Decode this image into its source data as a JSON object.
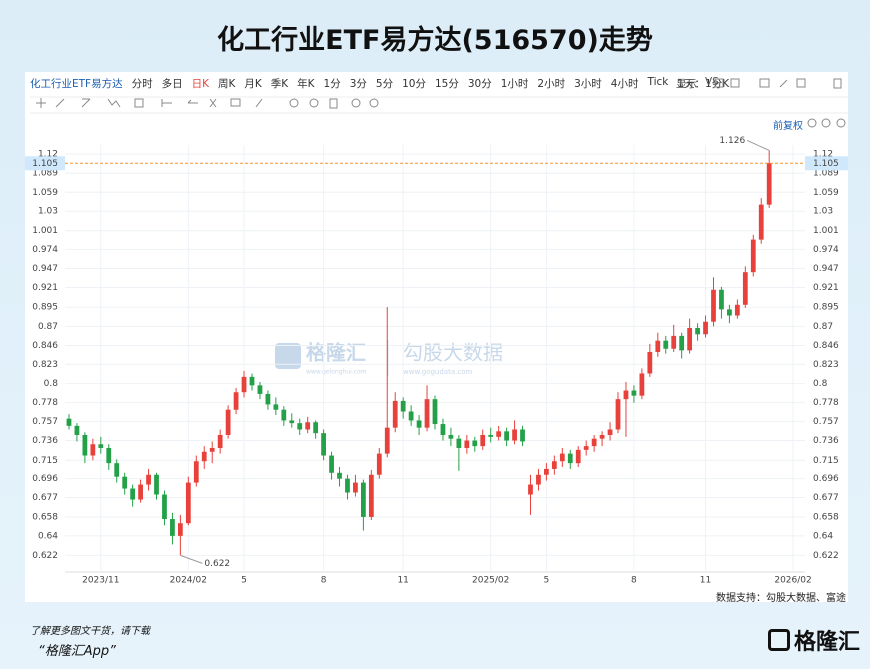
{
  "title": "化工行业ETF易方达(516570)走势",
  "toolbar": {
    "items": [
      "化工行业ETF易方达",
      "分时",
      "多日",
      "日K",
      "周K",
      "月K",
      "季K",
      "年K",
      "1分",
      "3分",
      "5分",
      "10分",
      "15分",
      "30分",
      "1小时",
      "2小时",
      "3小时",
      "4小时",
      "Tick",
      "1天：1分K"
    ],
    "right": [
      "显示",
      "VS"
    ],
    "adjust": "前复权"
  },
  "watermark": {
    "logo": "格隆汇",
    "logo_url": "www.gelonghui.com",
    "brand": "勾股大数据",
    "brand_url": "www.gogudata.com"
  },
  "source": "数据支持：勾股大数据、富途",
  "footer": {
    "line1": "了解更多图文干货，请下载",
    "line2": "“格隆汇App”",
    "logo": "格隆汇"
  },
  "chart_data": {
    "type": "candlestick",
    "log_scale": true,
    "grid": true,
    "up_color": "#e8413b",
    "down_color": "#24a148",
    "ylim": [
      0.607,
      1.135
    ],
    "yticks": [
      0.622,
      0.64,
      0.658,
      0.677,
      0.696,
      0.715,
      0.736,
      0.757,
      0.778,
      0.8,
      0.823,
      0.846,
      0.87,
      0.895,
      0.921,
      0.947,
      0.974,
      1.001,
      1.03,
      1.059,
      1.089,
      1.12
    ],
    "xlim": [
      -0.5,
      92.5
    ],
    "xticks": [
      {
        "value": 4,
        "label": "2023/11"
      },
      {
        "value": 15,
        "label": "2024/02"
      },
      {
        "value": 22,
        "label": "5"
      },
      {
        "value": 32,
        "label": "8"
      },
      {
        "value": 42,
        "label": "11"
      },
      {
        "value": 53,
        "label": "2025/02"
      },
      {
        "value": 60,
        "label": "5"
      },
      {
        "value": 71,
        "label": "8"
      },
      {
        "value": 80,
        "label": "11"
      },
      {
        "value": 91,
        "label": "2026/02"
      }
    ],
    "price_line": {
      "value": 1.105,
      "color": "#f0962c"
    },
    "annotations": [
      {
        "index": 88,
        "value": 1.126
      },
      {
        "index": 14,
        "value": 0.622
      }
    ],
    "candles": [
      [
        0.76,
        0.765,
        0.748,
        0.752
      ],
      [
        0.752,
        0.755,
        0.735,
        0.742
      ],
      [
        0.742,
        0.745,
        0.712,
        0.72
      ],
      [
        0.72,
        0.738,
        0.715,
        0.732
      ],
      [
        0.732,
        0.74,
        0.722,
        0.728
      ],
      [
        0.728,
        0.732,
        0.705,
        0.712
      ],
      [
        0.712,
        0.716,
        0.692,
        0.698
      ],
      [
        0.698,
        0.702,
        0.68,
        0.686
      ],
      [
        0.686,
        0.69,
        0.668,
        0.675
      ],
      [
        0.675,
        0.695,
        0.672,
        0.69
      ],
      [
        0.69,
        0.706,
        0.684,
        0.7
      ],
      [
        0.7,
        0.702,
        0.675,
        0.68
      ],
      [
        0.68,
        0.684,
        0.65,
        0.656
      ],
      [
        0.656,
        0.662,
        0.632,
        0.64
      ],
      [
        0.64,
        0.66,
        0.622,
        0.652
      ],
      [
        0.652,
        0.698,
        0.65,
        0.692
      ],
      [
        0.692,
        0.72,
        0.688,
        0.714
      ],
      [
        0.714,
        0.73,
        0.706,
        0.724
      ],
      [
        0.724,
        0.735,
        0.712,
        0.728
      ],
      [
        0.728,
        0.748,
        0.722,
        0.742
      ],
      [
        0.742,
        0.775,
        0.738,
        0.77
      ],
      [
        0.77,
        0.795,
        0.765,
        0.79
      ],
      [
        0.79,
        0.815,
        0.784,
        0.808
      ],
      [
        0.808,
        0.812,
        0.792,
        0.798
      ],
      [
        0.798,
        0.802,
        0.782,
        0.788
      ],
      [
        0.788,
        0.792,
        0.77,
        0.776
      ],
      [
        0.776,
        0.784,
        0.764,
        0.77
      ],
      [
        0.77,
        0.774,
        0.752,
        0.758
      ],
      [
        0.758,
        0.766,
        0.75,
        0.755
      ],
      [
        0.755,
        0.76,
        0.742,
        0.748
      ],
      [
        0.748,
        0.762,
        0.744,
        0.756
      ],
      [
        0.756,
        0.758,
        0.738,
        0.744
      ],
      [
        0.744,
        0.748,
        0.715,
        0.72
      ],
      [
        0.72,
        0.724,
        0.695,
        0.702
      ],
      [
        0.702,
        0.708,
        0.688,
        0.696
      ],
      [
        0.696,
        0.7,
        0.675,
        0.682
      ],
      [
        0.682,
        0.7,
        0.678,
        0.692
      ],
      [
        0.692,
        0.695,
        0.645,
        0.658
      ],
      [
        0.658,
        0.705,
        0.655,
        0.7
      ],
      [
        0.7,
        0.728,
        0.696,
        0.722
      ],
      [
        0.722,
        0.895,
        0.718,
        0.75
      ],
      [
        0.75,
        0.79,
        0.745,
        0.78
      ],
      [
        0.78,
        0.784,
        0.76,
        0.768
      ],
      [
        0.768,
        0.775,
        0.752,
        0.758
      ],
      [
        0.758,
        0.764,
        0.742,
        0.75
      ],
      [
        0.75,
        0.798,
        0.746,
        0.782
      ],
      [
        0.782,
        0.786,
        0.748,
        0.754
      ],
      [
        0.754,
        0.76,
        0.736,
        0.742
      ],
      [
        0.742,
        0.75,
        0.73,
        0.738
      ],
      [
        0.738,
        0.742,
        0.704,
        0.728
      ],
      [
        0.728,
        0.742,
        0.722,
        0.736
      ],
      [
        0.736,
        0.74,
        0.724,
        0.73
      ],
      [
        0.73,
        0.748,
        0.726,
        0.742
      ],
      [
        0.742,
        0.75,
        0.734,
        0.74
      ],
      [
        0.74,
        0.752,
        0.736,
        0.746
      ],
      [
        0.746,
        0.75,
        0.73,
        0.736
      ],
      [
        0.736,
        0.758,
        0.732,
        0.748
      ],
      [
        0.748,
        0.752,
        0.73,
        0.735
      ],
      [
        0.68,
        0.7,
        0.66,
        0.69
      ],
      [
        0.69,
        0.706,
        0.684,
        0.7
      ],
      [
        0.7,
        0.712,
        0.694,
        0.706
      ],
      [
        0.706,
        0.72,
        0.7,
        0.714
      ],
      [
        0.714,
        0.728,
        0.708,
        0.722
      ],
      [
        0.722,
        0.726,
        0.706,
        0.712
      ],
      [
        0.712,
        0.73,
        0.708,
        0.726
      ],
      [
        0.726,
        0.736,
        0.72,
        0.73
      ],
      [
        0.73,
        0.742,
        0.724,
        0.738
      ],
      [
        0.738,
        0.746,
        0.73,
        0.742
      ],
      [
        0.742,
        0.756,
        0.736,
        0.748
      ],
      [
        0.748,
        0.79,
        0.744,
        0.782
      ],
      [
        0.782,
        0.802,
        0.74,
        0.792
      ],
      [
        0.792,
        0.798,
        0.778,
        0.786
      ],
      [
        0.786,
        0.818,
        0.782,
        0.812
      ],
      [
        0.812,
        0.848,
        0.808,
        0.838
      ],
      [
        0.838,
        0.862,
        0.832,
        0.852
      ],
      [
        0.852,
        0.858,
        0.836,
        0.842
      ],
      [
        0.842,
        0.872,
        0.838,
        0.858
      ],
      [
        0.858,
        0.862,
        0.83,
        0.84
      ],
      [
        0.84,
        0.88,
        0.836,
        0.868
      ],
      [
        0.868,
        0.874,
        0.852,
        0.86
      ],
      [
        0.86,
        0.884,
        0.856,
        0.876
      ],
      [
        0.876,
        0.935,
        0.87,
        0.918
      ],
      [
        0.918,
        0.922,
        0.88,
        0.892
      ],
      [
        0.892,
        0.898,
        0.874,
        0.884
      ],
      [
        0.884,
        0.905,
        0.88,
        0.898
      ],
      [
        0.898,
        0.95,
        0.894,
        0.942
      ],
      [
        0.942,
        0.995,
        0.936,
        0.988
      ],
      [
        0.988,
        1.05,
        0.982,
        1.04
      ],
      [
        1.04,
        1.126,
        1.035,
        1.105
      ]
    ]
  }
}
